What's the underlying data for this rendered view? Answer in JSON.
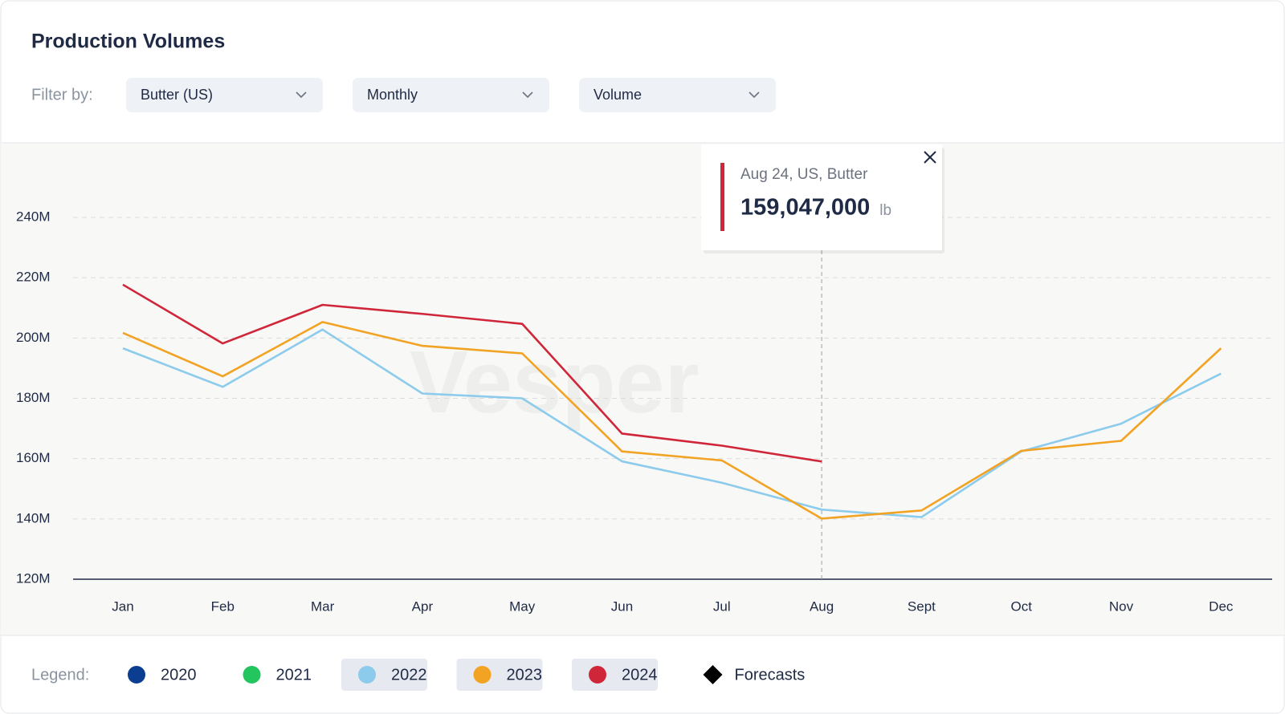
{
  "header": {
    "title": "Production Volumes",
    "filter_label": "Filter by:",
    "filters": [
      "Butter (US)",
      "Monthly",
      "Volume"
    ]
  },
  "watermark": "Vesper",
  "legend_label": "Legend:",
  "forecast_label": "Forecasts",
  "chart_data": {
    "type": "line",
    "categories": [
      "Jan",
      "Feb",
      "Mar",
      "Apr",
      "May",
      "Jun",
      "Jul",
      "Aug",
      "Sept",
      "Oct",
      "Nov",
      "Dec"
    ],
    "ylim": [
      120000000,
      240000000
    ],
    "yticks": [
      {
        "value": 120000000,
        "label": "120M"
      },
      {
        "value": 140000000,
        "label": "140M"
      },
      {
        "value": 160000000,
        "label": "160M"
      },
      {
        "value": 180000000,
        "label": "180M"
      },
      {
        "value": 200000000,
        "label": "200M"
      },
      {
        "value": 220000000,
        "label": "220M"
      },
      {
        "value": 240000000,
        "label": "240M"
      }
    ],
    "grid": true,
    "legend": "bottom",
    "series": [
      {
        "name": "2020",
        "color": "#0b3d91",
        "active": false,
        "values": [
          null,
          null,
          null,
          null,
          null,
          null,
          null,
          null,
          null,
          null,
          null,
          null
        ]
      },
      {
        "name": "2021",
        "color": "#22c55e",
        "active": false,
        "values": [
          null,
          null,
          null,
          null,
          null,
          null,
          null,
          null,
          null,
          null,
          null,
          null
        ]
      },
      {
        "name": "2022",
        "color": "#8ccbec",
        "active": true,
        "values": [
          196600000,
          183800000,
          202800000,
          181600000,
          180000000,
          159100000,
          152000000,
          143100000,
          140600000,
          162400000,
          171600000,
          188200000
        ]
      },
      {
        "name": "2023",
        "color": "#f2a324",
        "active": true,
        "values": [
          201700000,
          187300000,
          205300000,
          197400000,
          194900000,
          162400000,
          159400000,
          140100000,
          142800000,
          162600000,
          165900000,
          196600000
        ]
      },
      {
        "name": "2024",
        "color": "#d0263a",
        "active": true,
        "values": [
          217700000,
          198200000,
          211000000,
          208000000,
          204700000,
          168300000,
          164300000,
          159047000,
          null,
          null,
          null,
          null
        ],
        "value_labels": [
          null,
          null,
          null,
          null,
          null,
          null,
          null,
          "159,047,000",
          null,
          null,
          null,
          null
        ]
      }
    ],
    "tooltip": {
      "title": "Aug 24, US, Butter",
      "series": 4,
      "index": 7,
      "unit": "lb"
    }
  }
}
